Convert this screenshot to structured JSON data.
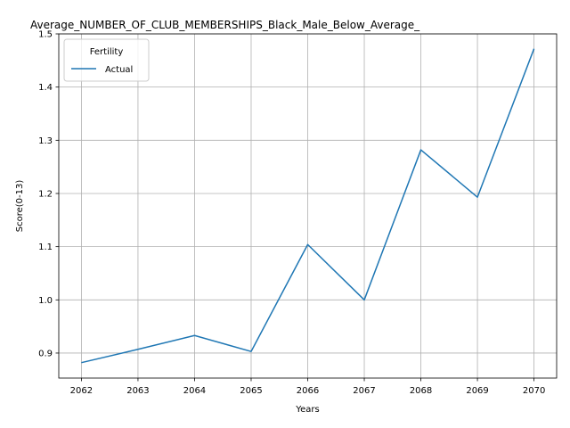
{
  "chart_data": {
    "type": "line",
    "title": "Average_NUMBER_OF_CLUB_MEMBERSHIPS_Black_Male_Below_Average_",
    "xlabel": "Years",
    "ylabel": "Score(0-13)",
    "x": [
      2062,
      2063,
      2064,
      2065,
      2066,
      2067,
      2068,
      2069,
      2070
    ],
    "series": [
      {
        "name": "Actual",
        "color": "#1f77b4",
        "values": [
          0.882,
          0.907,
          0.933,
          0.903,
          1.104,
          1.0,
          1.282,
          1.193,
          1.472
        ]
      }
    ],
    "xticks": [
      "2062",
      "2063",
      "2064",
      "2065",
      "2066",
      "2067",
      "2068",
      "2069",
      "2070"
    ],
    "yticks": [
      "0.9",
      "1.0",
      "1.1",
      "1.2",
      "1.3",
      "1.4",
      "1.5"
    ],
    "ylim": [
      0.853,
      1.5
    ],
    "xlim": [
      2061.6,
      2070.4
    ],
    "grid": true,
    "legend": {
      "title": "Fertility",
      "placement": "top-left"
    }
  }
}
